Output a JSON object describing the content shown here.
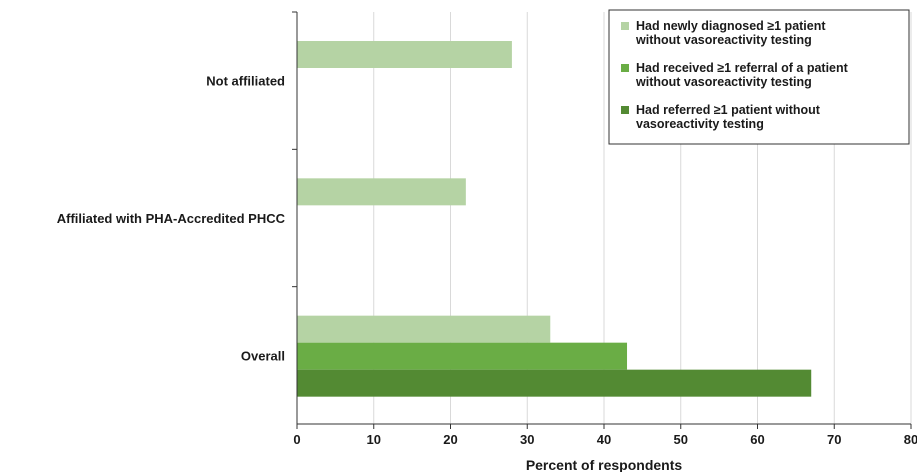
{
  "chart_data": {
    "type": "bar",
    "orientation": "horizontal",
    "categories": [
      "Not affiliated",
      "Affiliated with PHA-Accredited PHCC",
      "Overall"
    ],
    "series": [
      {
        "name": "Had newly diagnosed ≥1 patient without vasoreactivity testing",
        "color": "#b5d3a4",
        "values": [
          28,
          22,
          33
        ]
      },
      {
        "name": "Had received ≥1 referral of a patient without vasoreactivity testing",
        "color": "#6aad45",
        "values": [
          null,
          null,
          43
        ]
      },
      {
        "name": "Had referred ≥1 patient without vasoreactivity testing",
        "color": "#538a33",
        "values": [
          null,
          null,
          67
        ]
      }
    ],
    "legend_lines": [
      [
        "Had newly diagnosed ≥1 patient",
        "without vasoreactivity testing"
      ],
      [
        "Had received ≥1 referral of a patient",
        "without vasoreactivity testing"
      ],
      [
        "Had referred ≥1 patient without",
        "vasoreactivity testing"
      ]
    ],
    "xlabel": "Percent of respondents",
    "ylabel": "",
    "xlim": [
      0,
      80
    ],
    "xticks": [
      0,
      10,
      20,
      30,
      40,
      50,
      60,
      70,
      80
    ],
    "grid": "vertical",
    "legend_position": "top-right"
  }
}
